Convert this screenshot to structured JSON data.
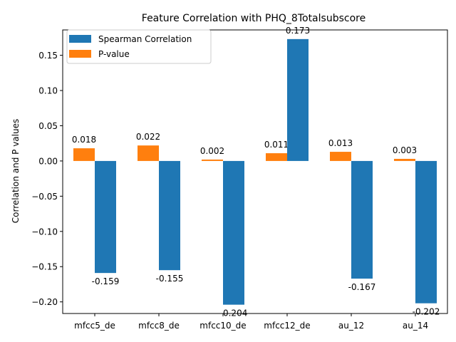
{
  "chart_data": {
    "type": "bar",
    "title": "Feature Correlation with PHQ_8Totalsubscore",
    "xlabel": "",
    "ylabel": "Correlation and P values",
    "categories": [
      "mfcc5_de",
      "mfcc8_de",
      "mfcc10_de",
      "mfcc12_de",
      "au_12",
      "au_14"
    ],
    "series": [
      {
        "name": "Spearman Correlation",
        "color": "#1f77b4",
        "values": [
          -0.159,
          -0.155,
          -0.204,
          0.173,
          -0.167,
          -0.202
        ],
        "labels": [
          "-0.159",
          "-0.155",
          "-0.204",
          "0.173",
          "-0.167",
          "-0.202"
        ]
      },
      {
        "name": "P-value",
        "color": "#ff7f0e",
        "values": [
          0.018,
          0.022,
          0.002,
          0.011,
          0.013,
          0.003
        ],
        "labels": [
          "0.018",
          "0.022",
          "0.002",
          "0.011",
          "0.013",
          "0.003"
        ]
      }
    ],
    "ylim": [
      -0.2165,
      0.186
    ],
    "yticks": [
      -0.2,
      -0.15,
      -0.1,
      -0.05,
      0.0,
      0.05,
      0.1,
      0.15
    ],
    "ytick_labels": [
      "−0.20",
      "−0.15",
      "−0.10",
      "−0.05",
      "0.00",
      "0.05",
      "0.10",
      "0.15"
    ],
    "grid": false,
    "legend_position": "upper-left"
  }
}
